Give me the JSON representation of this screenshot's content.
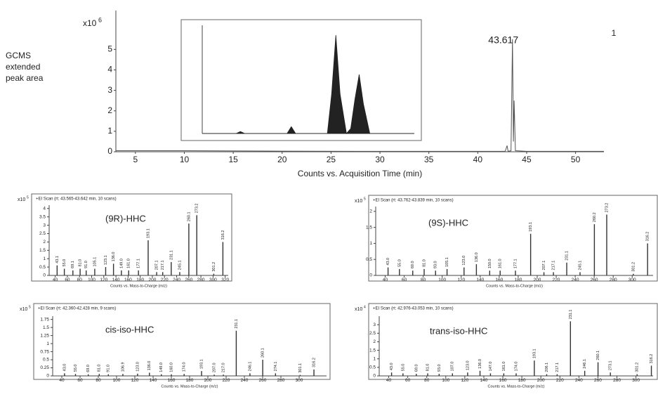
{
  "chart_data": [
    {
      "type": "line",
      "color": "#555",
      "ylabel_lines": [
        "GCMS",
        "extended",
        "peak area"
      ],
      "y_scale_label": "x10",
      "y_scale_exponent": "6",
      "xlabel": "Counts vs. Acquisition Time (min)",
      "xlim": [
        3,
        52.9
      ],
      "xticks": [
        5,
        10,
        15,
        20,
        25,
        30,
        35,
        40,
        45,
        50
      ],
      "ylim": [
        0,
        6.9
      ],
      "yticks": [
        0,
        1,
        2,
        3,
        4,
        5
      ],
      "x": [
        3,
        10,
        20,
        30,
        40,
        42.8,
        43.0,
        43.1,
        43.4,
        43.55,
        43.65,
        43.72,
        43.85,
        45,
        52.9
      ],
      "values": [
        0.05,
        0.05,
        0.03,
        0.02,
        0.02,
        0.02,
        0.3,
        0.02,
        0.05,
        5.5,
        0.5,
        2.5,
        0.05,
        0.02,
        0.02
      ],
      "peak_label": "43.617",
      "corner_label": "1",
      "inset": {
        "type": "area",
        "color": "#222",
        "xlim": [
          0,
          10
        ],
        "ylim": [
          0,
          1.1
        ],
        "x": [
          0,
          1.6,
          1.8,
          2.0,
          4.0,
          4.2,
          4.4,
          5.9,
          6.1,
          6.3,
          6.5,
          6.8,
          7.0,
          7.2,
          7.4,
          7.6,
          7.9,
          10
        ],
        "values": [
          0,
          0,
          0.02,
          0,
          0,
          0.07,
          0,
          0,
          0.4,
          1.0,
          0.4,
          0,
          0.05,
          0.35,
          0.6,
          0.3,
          0,
          0
        ]
      }
    },
    {
      "type": "bar",
      "color": "#333",
      "scan_label": "+EI Scan (rt: 43.565-43.642 min, 10 scans)",
      "annotation": "(9R)-HHC",
      "y_scale_label": "x10",
      "y_scale_exponent": "5",
      "xlabel": "Counts vs. Mass-to-Charge (m/z)",
      "xlim": [
        30,
        325
      ],
      "xticks": [
        40,
        60,
        80,
        100,
        120,
        140,
        160,
        180,
        200,
        220,
        240,
        260,
        280,
        300,
        320
      ],
      "ylim": [
        0,
        4.2
      ],
      "yticks": [
        0,
        0.5,
        1,
        1.5,
        2,
        2.5,
        3,
        3.5,
        4
      ],
      "x": [
        43.1,
        55.0,
        69.1,
        81.0,
        91.0,
        105.1,
        123.1,
        136.0,
        149.0,
        161.0,
        177.1,
        193.1,
        207.1,
        217.1,
        231.1,
        245.1,
        260.1,
        273.2,
        301.2,
        316.2
      ],
      "x_labels": [
        "43.1",
        "55.0",
        "69.1",
        "81.0",
        "91.0",
        "105.1",
        "123.1",
        "136.0",
        "149.0",
        "161.0",
        "177.1",
        "193.1",
        "207.1",
        "217.1",
        "231.1",
        "245.1",
        "260.1",
        "273.2",
        "301.2",
        "316.2"
      ],
      "values": [
        0.6,
        0.4,
        0.3,
        0.4,
        0.3,
        0.4,
        0.5,
        0.7,
        0.3,
        0.3,
        0.3,
        2.1,
        0.2,
        0.2,
        0.8,
        0.2,
        3.1,
        3.6,
        0.1,
        2.0
      ]
    },
    {
      "type": "bar",
      "color": "#333",
      "scan_label": "+EI Scan (rt: 43.762-43.839 min, 10 scans)",
      "annotation": "(9S)-HHC",
      "y_scale_label": "x10",
      "y_scale_exponent": "5",
      "xlabel": "Counts vs. Mass-to-Charge (m/z)",
      "xlim": [
        30,
        322
      ],
      "xticks": [
        40,
        60,
        80,
        100,
        120,
        140,
        160,
        180,
        200,
        220,
        240,
        260,
        280,
        300
      ],
      "ylim": [
        0,
        2.15
      ],
      "yticks": [
        0,
        0.5,
        1,
        1.5,
        2
      ],
      "x": [
        43.0,
        55.0,
        69.0,
        81.0,
        93.0,
        105.1,
        123.0,
        136.0,
        150.0,
        161.0,
        177.1,
        193.1,
        207.1,
        217.1,
        231.1,
        245.1,
        260.2,
        273.2,
        301.2,
        316.2
      ],
      "x_labels": [
        "43.0",
        "55.0",
        "69.0",
        "81.0",
        "93.0",
        "105.1",
        "123.0",
        "136.0",
        "150.0",
        "161.0",
        "177.1",
        "193.1",
        "207.1",
        "217.1",
        "231.1",
        "245.1",
        "260.2",
        "273.2",
        "301.2",
        "316.2"
      ],
      "values": [
        0.25,
        0.2,
        0.15,
        0.2,
        0.15,
        0.2,
        0.25,
        0.35,
        0.15,
        0.15,
        0.15,
        1.3,
        0.1,
        0.1,
        0.4,
        0.1,
        1.6,
        1.9,
        0.05,
        1.0
      ]
    },
    {
      "type": "bar",
      "color": "#333",
      "scan_label": "+EI Scan (rt: 42.360-42.428 min, 9 scans)",
      "annotation": "cis-iso-HHC",
      "y_scale_label": "x10",
      "y_scale_exponent": "5",
      "xlabel": "Counts vs. Mass-to-Charge (m/z)",
      "xlim": [
        30,
        330
      ],
      "xticks": [
        40,
        60,
        80,
        100,
        120,
        140,
        160,
        180,
        200,
        220,
        240,
        260,
        280,
        300
      ],
      "ylim": [
        0,
        1.85
      ],
      "yticks": [
        0,
        0.25,
        0.5,
        0.75,
        1,
        1.25,
        1.5,
        1.75
      ],
      "x": [
        43.0,
        55.0,
        69.0,
        81.0,
        91.0,
        106.9,
        123.0,
        136.0,
        149.0,
        160.0,
        174.0,
        193.1,
        207.0,
        217.0,
        231.1,
        246.1,
        260.1,
        274.1,
        301.1,
        316.2
      ],
      "x_labels": [
        "43.0",
        "55.0",
        "69.0",
        "81.0",
        "91.0",
        "106.9",
        "123.0",
        "136.0",
        "149.0",
        "160.0",
        "174.0",
        "193.1",
        "207.0",
        "217.0",
        "231.1",
        "246.1",
        "260.1",
        "274.1",
        "301.1",
        "316.2"
      ],
      "values": [
        0.08,
        0.06,
        0.05,
        0.06,
        0.05,
        0.06,
        0.07,
        0.1,
        0.05,
        0.05,
        0.06,
        0.15,
        0.04,
        0.04,
        1.4,
        0.08,
        0.5,
        0.08,
        0.03,
        0.2
      ]
    },
    {
      "type": "bar",
      "color": "#333",
      "scan_label": "+EI Scan (rt: 42.976-43.053 min, 10 scans)",
      "annotation": "trans-iso-HHC",
      "y_scale_label": "x10",
      "y_scale_exponent": "4",
      "xlabel": "Counts vs. Mass-to-Charge (m/z)",
      "xlim": [
        30,
        318
      ],
      "xticks": [
        40,
        60,
        80,
        100,
        120,
        140,
        160,
        180,
        200,
        220,
        240,
        260,
        280,
        300
      ],
      "ylim": [
        0,
        3.5
      ],
      "yticks": [
        0,
        0.5,
        1,
        1.5,
        2,
        2.5,
        3
      ],
      "x": [
        43.0,
        55.0,
        69.0,
        81.0,
        93.0,
        107.0,
        123.0,
        136.0,
        147.0,
        161.0,
        174.0,
        193.1,
        206.1,
        217.1,
        231.1,
        246.1,
        260.1,
        273.1,
        301.2,
        316.2
      ],
      "x_labels": [
        "43.0",
        "55.0",
        "69.0",
        "81.0",
        "93.0",
        "107.0",
        "123.0",
        "136.0",
        "147.0",
        "161.0",
        "174.0",
        "193.1",
        "206.1",
        "217.1",
        "231.1",
        "246.1",
        "260.1",
        "273.1",
        "301.2",
        "316.2"
      ],
      "values": [
        0.2,
        0.15,
        0.12,
        0.15,
        0.12,
        0.15,
        0.2,
        0.3,
        0.15,
        0.15,
        0.15,
        0.9,
        0.1,
        0.1,
        3.2,
        0.3,
        0.8,
        0.2,
        0.1,
        0.6
      ]
    }
  ]
}
